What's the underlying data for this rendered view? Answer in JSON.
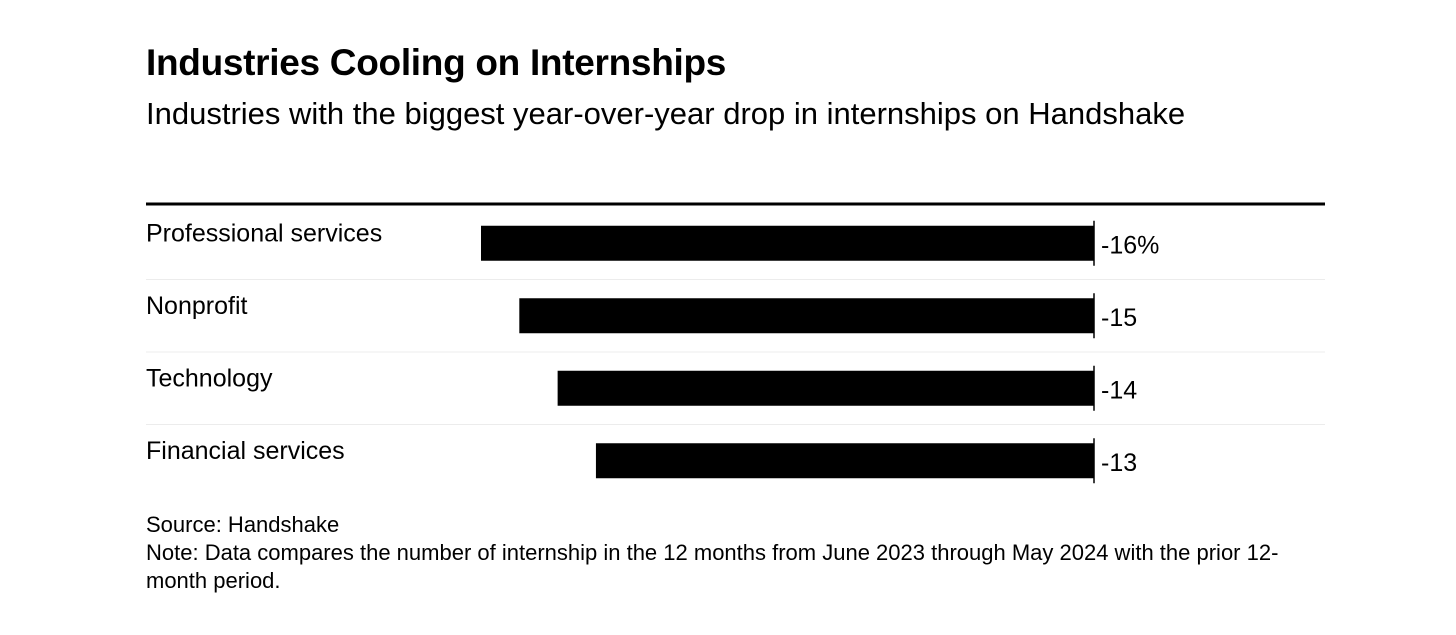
{
  "chart_data": {
    "type": "bar",
    "orientation": "horizontal",
    "title": "Industries Cooling on Internships",
    "subtitle": "Industries with the biggest year-over-year drop in internships on Handshake",
    "categories": [
      "Professional services",
      "Nonprofit",
      "Technology",
      "Financial services"
    ],
    "values": [
      -16,
      -15,
      -14,
      -13
    ],
    "value_labels": [
      "-16%",
      "-15",
      "-14",
      "-13"
    ],
    "xlim": [
      -16,
      0
    ],
    "grid": false,
    "legend": "none",
    "bar_color": "#000000",
    "divider_color": "#ececec"
  },
  "footer": {
    "source": "Source: Handshake",
    "note": "Note: Data compares the number of internship in the 12 months from June 2023 through May 2024 with the prior 12-month period."
  }
}
